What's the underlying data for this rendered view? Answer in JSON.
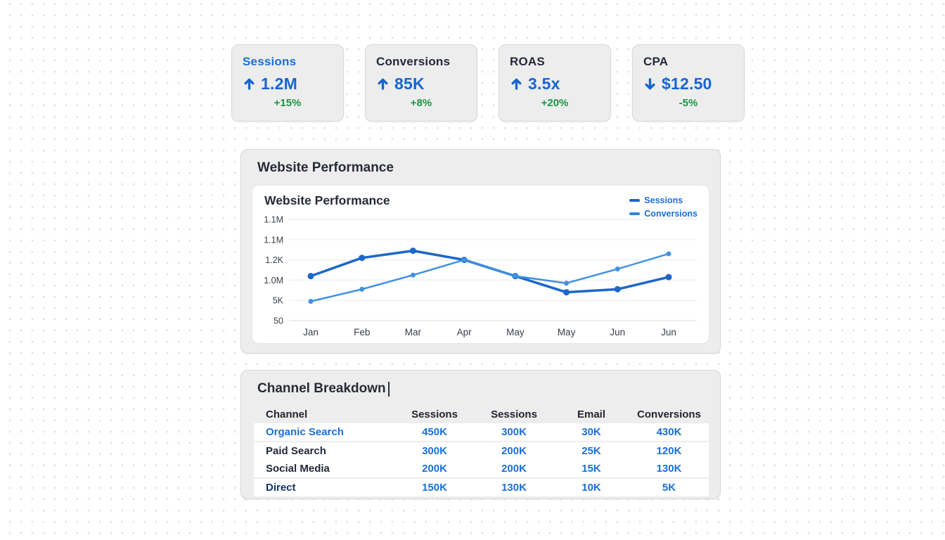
{
  "colors": {
    "accent_blue": "#1a6fd6",
    "value_blue": "#1766cf",
    "sessions_line": "#1b67ca",
    "conversions_line": "#4191e2",
    "positive_green": "#1a9641",
    "dark_text": "#23283a",
    "navy_link": "#14316d",
    "card_bg": "#ededee",
    "card_border": "#d5d7da"
  },
  "kpi_cards": [
    {
      "label": "Sessions",
      "label_color": "#1a6fd6",
      "direction": "up",
      "value": "1.2M",
      "delta": "+15%",
      "delta_color": "#1a9641"
    },
    {
      "label": "Conversions",
      "label_color": "#23283a",
      "direction": "up",
      "value": "85K",
      "delta": "+8%",
      "delta_color": "#1a9641"
    },
    {
      "label": "ROAS",
      "label_color": "#23283a",
      "direction": "up",
      "value": "3.5x",
      "delta": "+20%",
      "delta_color": "#1a9641"
    },
    {
      "label": "CPA",
      "label_color": "#23283a",
      "direction": "down",
      "value": "$12.50",
      "delta": "-5%",
      "delta_color": "#1a9641"
    }
  ],
  "performance_card": {
    "title": "Website Performance"
  },
  "chart_data": {
    "type": "line",
    "title": "Website Performance",
    "categories": [
      "Jan",
      "Feb",
      "Mar",
      "Apr",
      "May",
      "May",
      "Jun",
      "Jun"
    ],
    "y_tick_labels": [
      "1.1M",
      "1.1M",
      "1.2K",
      "1.0M",
      "5K",
      "50"
    ],
    "series": [
      {
        "name": "Sessions",
        "color": "#1b67ca",
        "line_width": 3.5,
        "point_radius": 4.5,
        "values": [
          44,
          62,
          69,
          60,
          44,
          28,
          31,
          43
        ]
      },
      {
        "name": "Conversions",
        "color": "#4191e2",
        "line_width": 2.5,
        "point_radius": 3.5,
        "values": [
          19,
          31,
          45,
          60,
          44,
          37,
          51,
          66
        ]
      }
    ],
    "value_scale": "percent of plot height above bottom gridline (0-100)",
    "legend_position": "top-right",
    "grid": true
  },
  "breakdown_card": {
    "title": "Channel Breakdown",
    "columns": [
      "Channel",
      "Sessions",
      "Sessions",
      "Email",
      "Conversions"
    ],
    "rows": [
      {
        "channel": "Organic Search",
        "channel_color": "#1a6fd6",
        "is_link": true,
        "values": [
          "450K",
          "300K",
          "30K",
          "430K"
        ]
      },
      {
        "channel": "Paid Search",
        "channel_color": "#23283a",
        "is_link": false,
        "values": [
          "300K",
          "200K",
          "25K",
          "120K"
        ]
      },
      {
        "channel": "Social Media",
        "channel_color": "#23283a",
        "is_link": false,
        "values": [
          "200K",
          "200K",
          "15K",
          "130K"
        ]
      },
      {
        "channel": "Direct",
        "channel_color": "#14316d",
        "is_link": true,
        "values": [
          "150K",
          "130K",
          "10K",
          "5K"
        ]
      }
    ]
  }
}
